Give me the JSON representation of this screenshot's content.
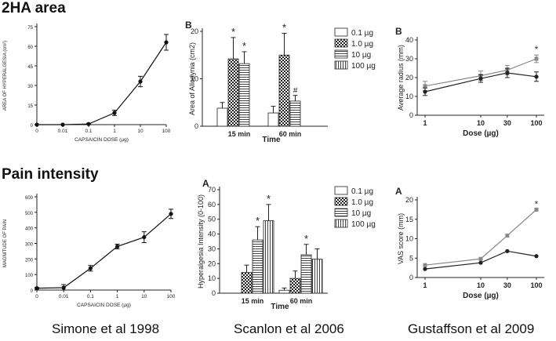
{
  "headings": {
    "area": "2HA area",
    "pain": "Pain intensity"
  },
  "captions": {
    "simone": "Simone et al 1998",
    "scanlon": "Scanlon et al 2006",
    "gustaffson": "Gustaffson et al 2009"
  },
  "chart_data": [
    {
      "id": "simone-area",
      "type": "line",
      "xlabel": "CAPSAICIN DOSE (µg)",
      "ylabel": "AREA OF HYPERALGESIA (cm²)",
      "x_ticks": [
        "0",
        "0.01",
        "0.1",
        "1",
        "10",
        "100"
      ],
      "y_ticks": [
        "0",
        "15",
        "30",
        "45",
        "60",
        "75"
      ],
      "ylim": [
        0,
        75
      ],
      "series": [
        {
          "values": [
            0,
            0,
            0.5,
            9,
            33,
            63
          ],
          "errors": [
            0,
            0,
            0.5,
            2,
            4,
            6
          ]
        }
      ]
    },
    {
      "id": "simone-pain",
      "type": "line",
      "xlabel": "CAPSAICIN DOSE (µg)",
      "ylabel": "MAGNITUDE OF PAIN",
      "x_ticks": [
        "0",
        "0.01",
        "0.1",
        "1",
        "10",
        "100"
      ],
      "y_ticks": [
        "0",
        "100",
        "200",
        "300",
        "400",
        "500",
        "600"
      ],
      "ylim": [
        0,
        600
      ],
      "series": [
        {
          "values": [
            12,
            15,
            140,
            280,
            340,
            490
          ],
          "errors": [
            5,
            20,
            18,
            15,
            35,
            30
          ]
        }
      ]
    },
    {
      "id": "scanlon-allodynia",
      "type": "bar",
      "panel_label": "B",
      "xlabel": "Time",
      "ylabel": "Area of Allodynia (cm2)",
      "categories": [
        "15 min",
        "60 min"
      ],
      "y_ticks": [
        "0",
        "10",
        "20"
      ],
      "ylim": [
        0,
        20
      ],
      "series": [
        {
          "name": "0.1 µg",
          "values": [
            3.8,
            2.8
          ],
          "errors": [
            1.2,
            1.4
          ]
        },
        {
          "name": "1.0 µg",
          "values": [
            14.2,
            15.0
          ],
          "errors": [
            4.5,
            4.6
          ]
        },
        {
          "name": "10 µg",
          "values": [
            13.2,
            5.3
          ],
          "errors": [
            2.5,
            1.2
          ]
        },
        {
          "name": "100 µg",
          "values": [
            0,
            0
          ],
          "errors": [
            0,
            0
          ]
        }
      ],
      "annotations": [
        {
          "category": 0,
          "series": 1,
          "text": "*"
        },
        {
          "category": 0,
          "series": 2,
          "text": "*"
        },
        {
          "category": 1,
          "series": 1,
          "text": "*"
        },
        {
          "category": 1,
          "series": 2,
          "text": "#"
        }
      ]
    },
    {
      "id": "scanlon-hyperalgesia",
      "type": "bar",
      "panel_label": "A",
      "xlabel": "Time",
      "ylabel": "Hyperalgesia Intensity (0-100)",
      "categories": [
        "15 min",
        "60 min"
      ],
      "y_ticks": [
        "0",
        "10",
        "20",
        "30",
        "40",
        "50",
        "60",
        "70"
      ],
      "ylim": [
        0,
        70
      ],
      "series": [
        {
          "name": "0.1 µg",
          "values": [
            0,
            2
          ],
          "errors": [
            0,
            1.5
          ]
        },
        {
          "name": "1.0 µg",
          "values": [
            14,
            10
          ],
          "errors": [
            5,
            5
          ]
        },
        {
          "name": "10 µg",
          "values": [
            36,
            26
          ],
          "errors": [
            9,
            7
          ]
        },
        {
          "name": "100 µg",
          "values": [
            49,
            23
          ],
          "errors": [
            11,
            7
          ]
        }
      ],
      "annotations": [
        {
          "category": 0,
          "series": 2,
          "text": "*"
        },
        {
          "category": 0,
          "series": 3,
          "text": "*"
        },
        {
          "category": 1,
          "series": 2,
          "text": "*"
        }
      ]
    },
    {
      "id": "gustaffson-radius",
      "type": "line",
      "panel_label": "B",
      "xlabel": "Dose (µg)",
      "ylabel": "Average radius (mm)",
      "x_ticks": [
        "1",
        "10",
        "30",
        "100"
      ],
      "y_ticks": [
        "0",
        "10",
        "20",
        "30",
        "40"
      ],
      "ylim": [
        0,
        40
      ],
      "series": [
        {
          "color": "#888888",
          "marker": "square",
          "values": [
            15.5,
            21,
            24,
            30
          ],
          "errors": [
            2.5,
            2.5,
            2.5,
            2
          ]
        },
        {
          "color": "#222222",
          "marker": "circle",
          "values": [
            12.5,
            19.5,
            22.5,
            20.5
          ],
          "errors": [
            2,
            2,
            2.5,
            2.5
          ]
        }
      ],
      "annotations": [
        {
          "point": 3,
          "text": "*"
        }
      ]
    },
    {
      "id": "gustaffson-vas",
      "type": "line",
      "panel_label": "A",
      "xlabel": "Dose (µg)",
      "ylabel": "VAS score (mm)",
      "x_ticks": [
        "1",
        "10",
        "30",
        "100"
      ],
      "y_ticks": [
        "0",
        "5",
        "10",
        "15",
        "20"
      ],
      "ylim": [
        0,
        20
      ],
      "series": [
        {
          "color": "#888888",
          "marker": "square",
          "values": [
            3.2,
            4.8,
            10.8,
            17.5
          ]
        },
        {
          "color": "#222222",
          "marker": "circle",
          "values": [
            2.2,
            3.8,
            6.8,
            5.5
          ]
        }
      ],
      "annotations": [
        {
          "point": 3,
          "text": "*"
        }
      ]
    }
  ]
}
